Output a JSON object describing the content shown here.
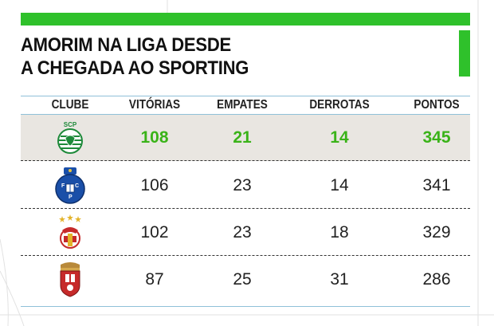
{
  "title": {
    "line1": "AMORIM NA LIGA DESDE",
    "line2": "A CHEGADA AO SPORTING"
  },
  "columns": [
    "CLUBE",
    "VITÓRIAS",
    "EMPATES",
    "DERROTAS",
    "PONTOS"
  ],
  "rows": [
    {
      "club_logo": "sporting-crest-icon",
      "vitorias": "108",
      "empates": "21",
      "derrotas": "14",
      "pontos": "345",
      "highlight": true
    },
    {
      "club_logo": "porto-crest-icon",
      "vitorias": "106",
      "empates": "23",
      "derrotas": "14",
      "pontos": "341",
      "highlight": false
    },
    {
      "club_logo": "benfica-crest-icon",
      "vitorias": "102",
      "empates": "23",
      "derrotas": "18",
      "pontos": "329",
      "highlight": false
    },
    {
      "club_logo": "braga-crest-icon",
      "vitorias": "87",
      "empates": "25",
      "derrotas": "31",
      "pontos": "286",
      "highlight": false
    }
  ],
  "colors": {
    "accent_green": "#2fc12b",
    "highlight_text": "#3ab318",
    "highlight_row": "#e9e6e1",
    "rule_blue": "#8fc1d8"
  }
}
